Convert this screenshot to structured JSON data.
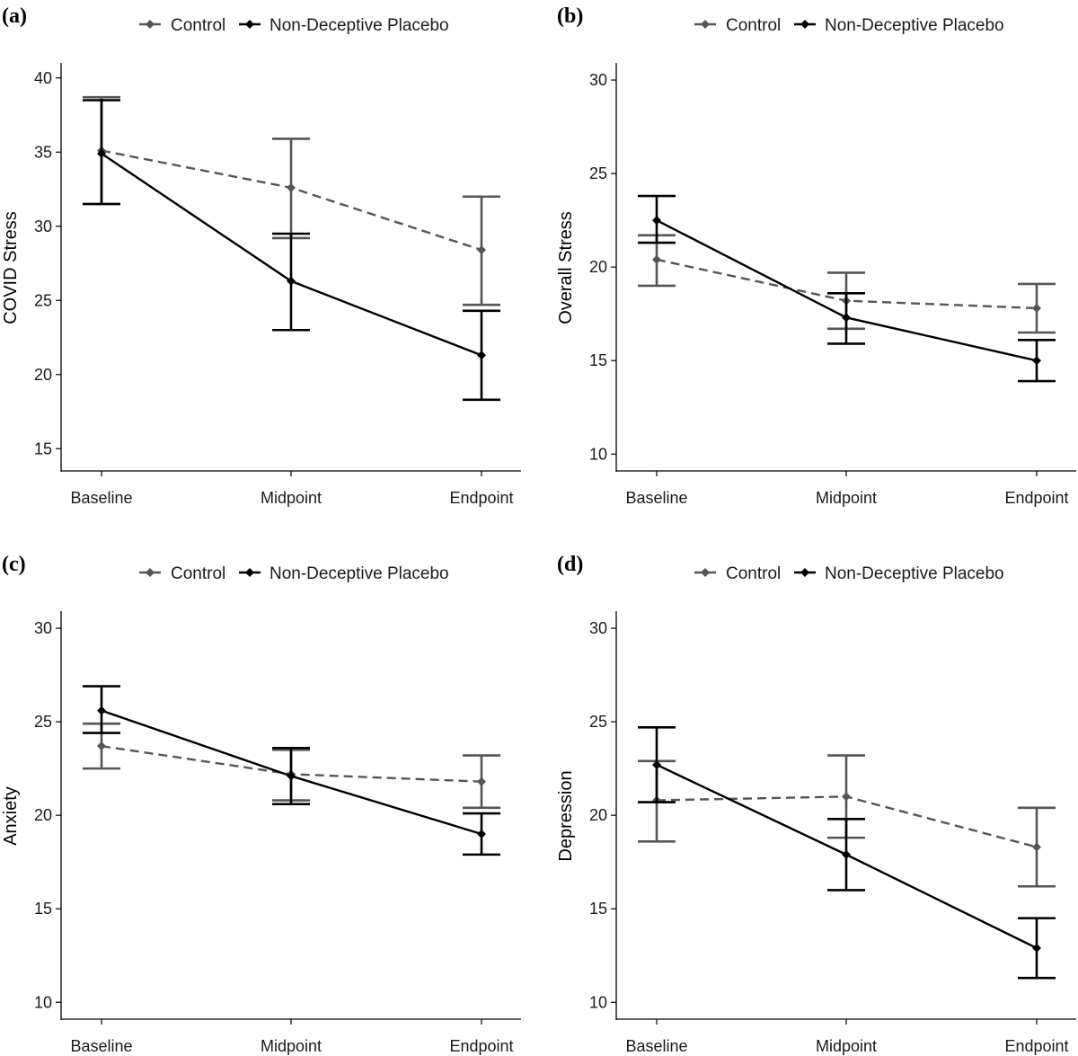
{
  "legend": {
    "series": [
      {
        "name": "Control",
        "color": "#555555",
        "dash": "dashed"
      },
      {
        "name": "Non-Deceptive Placebo",
        "color": "#000000",
        "dash": "solid"
      }
    ]
  },
  "chart_data": [
    {
      "panel": "(a)",
      "type": "line",
      "ylabel": "COVID Stress",
      "xlabel": "",
      "categories": [
        "Baseline",
        "Midpoint",
        "Endpoint"
      ],
      "ylim": [
        13.5,
        41.5
      ],
      "yticks": [
        15,
        20,
        25,
        30,
        35,
        40
      ],
      "series": [
        {
          "name": "Control",
          "values": [
            35.1,
            32.6,
            28.4
          ],
          "lower": [
            31.5,
            29.2,
            24.7
          ],
          "upper": [
            38.7,
            35.9,
            32.0
          ]
        },
        {
          "name": "Non-Deceptive Placebo",
          "values": [
            34.9,
            26.3,
            21.3
          ],
          "lower": [
            31.5,
            23.0,
            18.3
          ],
          "upper": [
            38.5,
            29.5,
            24.3
          ]
        }
      ]
    },
    {
      "panel": "(b)",
      "type": "line",
      "ylabel": "Overall Stress",
      "xlabel": "",
      "categories": [
        "Baseline",
        "Midpoint",
        "Endpoint"
      ],
      "ylim": [
        9.1,
        31.3
      ],
      "yticks": [
        10,
        15,
        20,
        25,
        30
      ],
      "series": [
        {
          "name": "Control",
          "values": [
            20.4,
            18.2,
            17.8
          ],
          "lower": [
            19.0,
            16.7,
            16.5
          ],
          "upper": [
            21.7,
            19.7,
            19.1
          ]
        },
        {
          "name": "Non-Deceptive Placebo",
          "values": [
            22.5,
            17.3,
            15.0
          ],
          "lower": [
            21.3,
            15.9,
            13.9
          ],
          "upper": [
            23.8,
            18.6,
            16.1
          ]
        }
      ]
    },
    {
      "panel": "(c)",
      "type": "line",
      "ylabel": "Anxiety",
      "xlabel": "",
      "categories": [
        "Baseline",
        "Midpoint",
        "Endpoint"
      ],
      "ylim": [
        9.1,
        31.3
      ],
      "yticks": [
        10,
        15,
        20,
        25,
        30
      ],
      "series": [
        {
          "name": "Control",
          "values": [
            23.7,
            22.2,
            21.8
          ],
          "lower": [
            22.5,
            20.8,
            20.4
          ],
          "upper": [
            24.9,
            23.5,
            23.2
          ]
        },
        {
          "name": "Non-Deceptive Placebo",
          "values": [
            25.6,
            22.1,
            19.0
          ],
          "lower": [
            24.4,
            20.6,
            17.9
          ],
          "upper": [
            26.9,
            23.6,
            20.1
          ]
        }
      ]
    },
    {
      "panel": "(d)",
      "type": "line",
      "ylabel": "Depression",
      "xlabel": "",
      "categories": [
        "Baseline",
        "Midpoint",
        "Endpoint"
      ],
      "ylim": [
        9.1,
        31.3
      ],
      "yticks": [
        10,
        15,
        20,
        25,
        30
      ],
      "series": [
        {
          "name": "Control",
          "values": [
            20.8,
            21.0,
            18.3
          ],
          "lower": [
            18.6,
            18.8,
            16.2
          ],
          "upper": [
            22.9,
            23.2,
            20.4
          ]
        },
        {
          "name": "Non-Deceptive Placebo",
          "values": [
            22.7,
            17.9,
            12.9
          ],
          "lower": [
            20.7,
            16.0,
            11.3
          ],
          "upper": [
            24.7,
            19.8,
            14.5
          ]
        }
      ]
    }
  ]
}
